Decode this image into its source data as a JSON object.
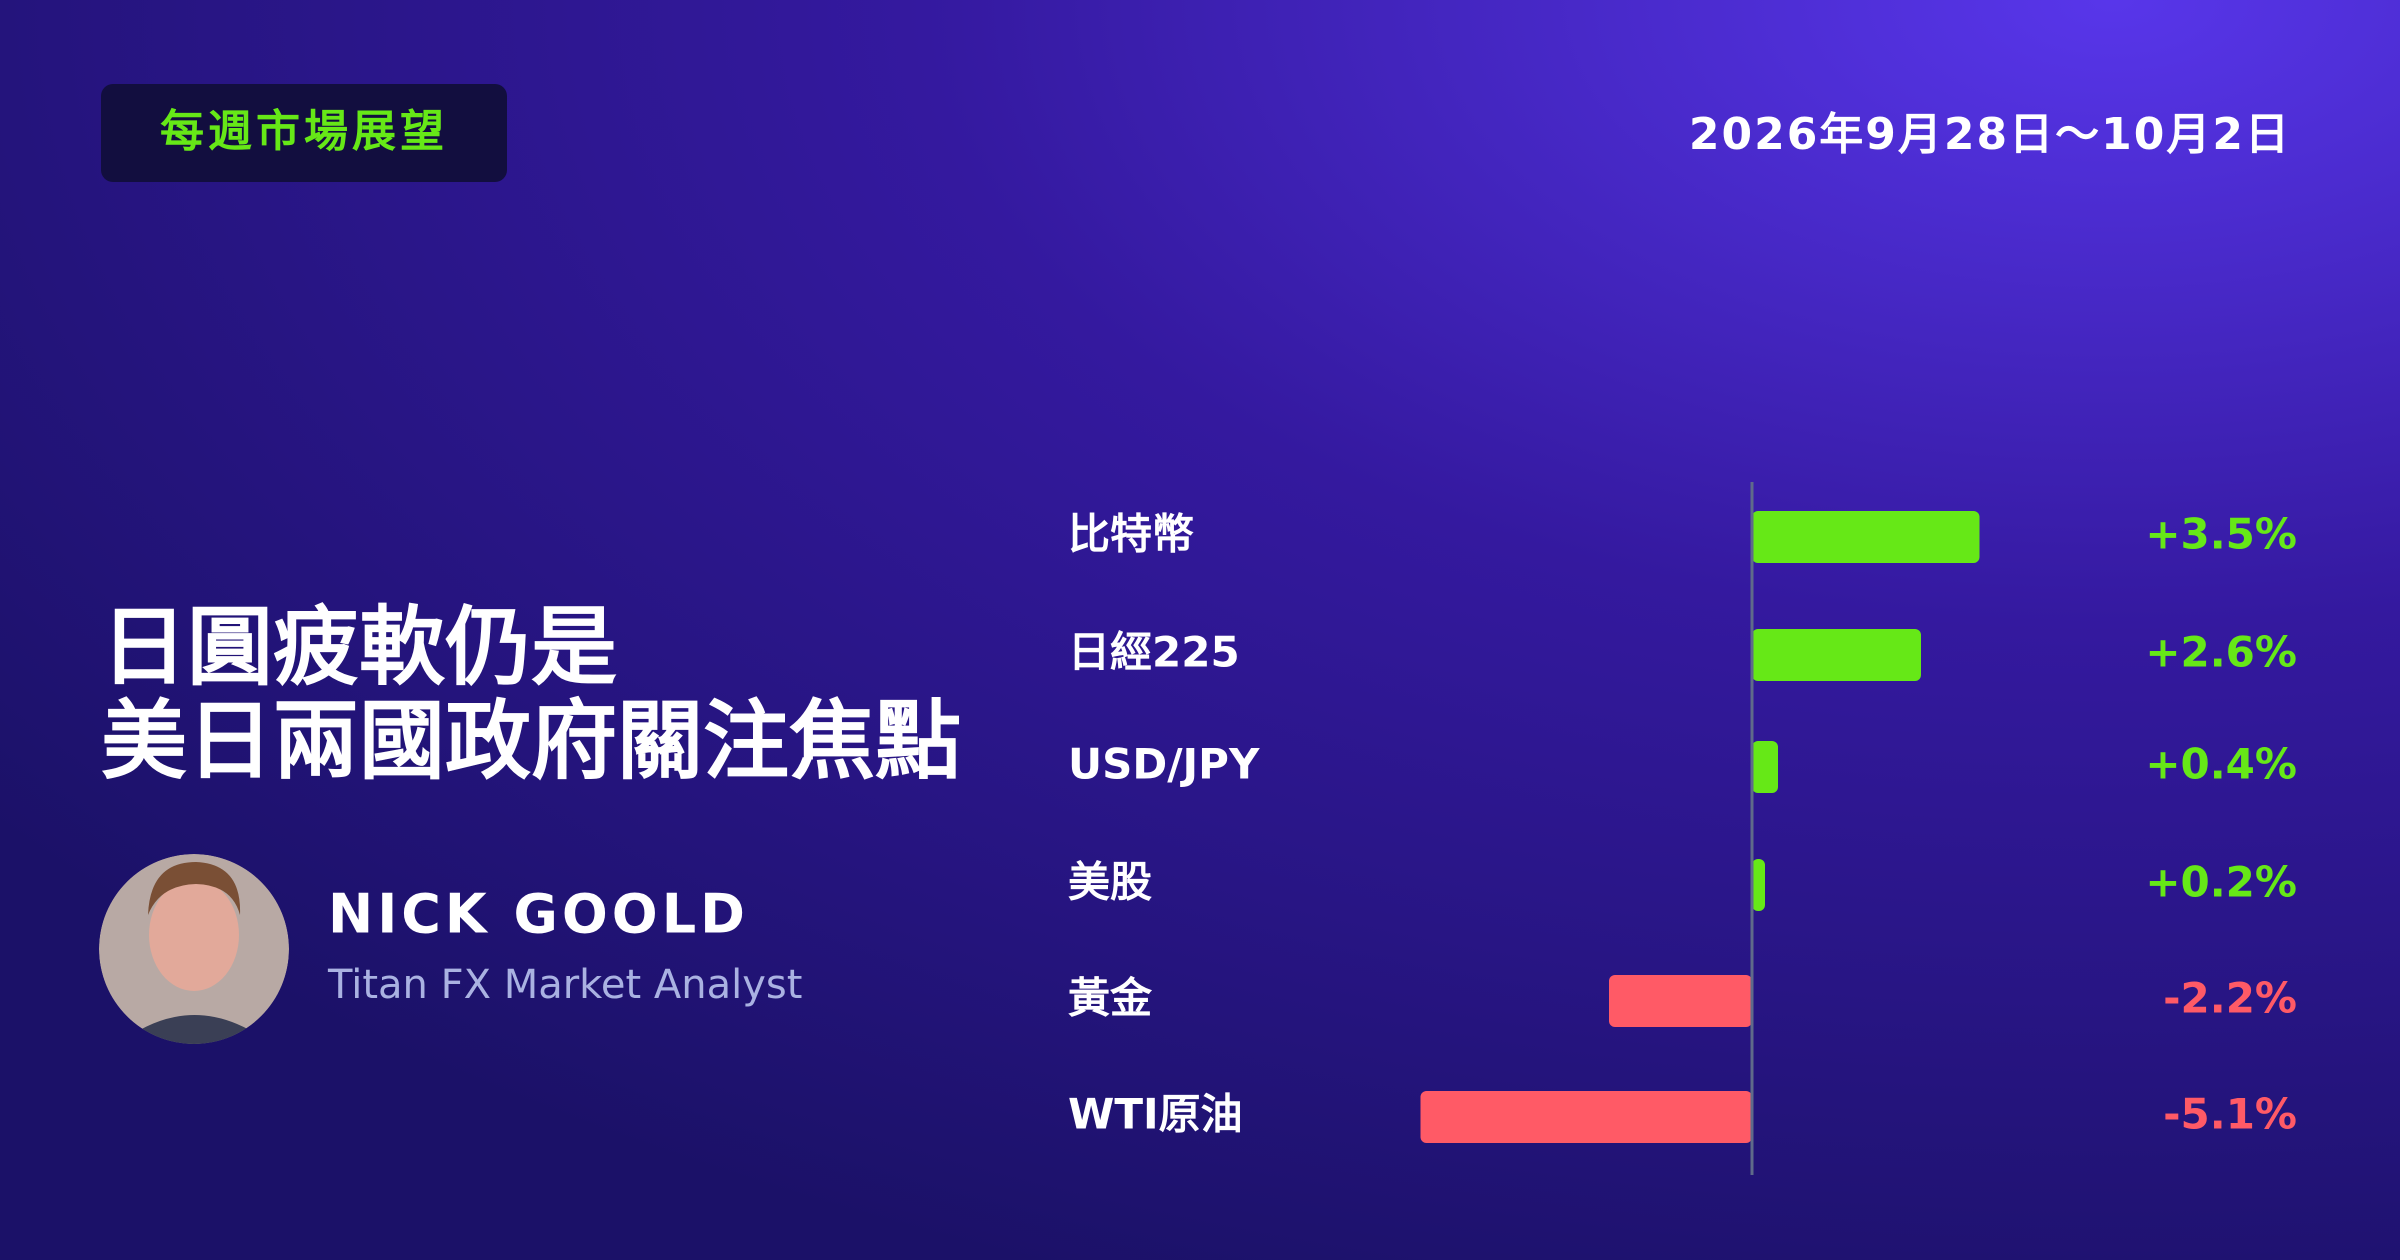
{
  "header": {
    "badge": "每週市場展望",
    "date": "2026年9月28日～10月2日"
  },
  "headline": {
    "lines": [
      "日圓疲軟仍是",
      "美日兩國政府關注焦點"
    ]
  },
  "author": {
    "name": "NICK GOOLD",
    "role": "Titan FX Market Analyst"
  },
  "chart_data": {
    "type": "bar",
    "orientation": "horizontal",
    "categories": [
      "比特幣",
      "日經225",
      "USD/JPY",
      "美股",
      "黃金",
      "WTI原油"
    ],
    "values": [
      3.5,
      2.6,
      0.4,
      0.2,
      -2.2,
      -5.1
    ],
    "value_labels": [
      "+3.5%",
      "+2.6%",
      "+0.4%",
      "+0.2%",
      "-2.2%",
      "-5.1%"
    ],
    "positive_color": "#66e817",
    "negative_color": "#ff5a66",
    "xlim": [
      -6,
      4
    ]
  }
}
